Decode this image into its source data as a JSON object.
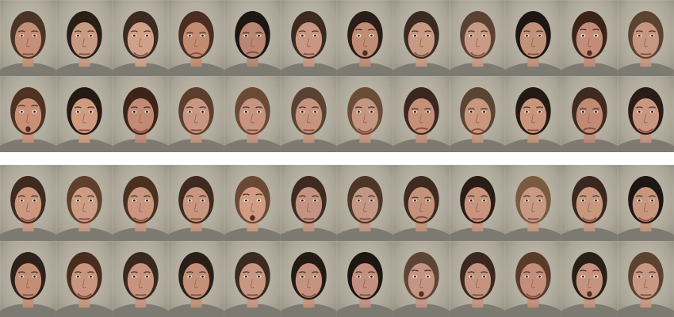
{
  "panels": [
    {
      "rows": [
        [
          {
            "hair": "#4a3426",
            "skin": "#c48f76",
            "expr": "neutral"
          },
          {
            "hair": "#2a1e18",
            "skin": "#c99a82",
            "expr": "neutral"
          },
          {
            "hair": "#3a2a20",
            "skin": "#d2a088",
            "expr": "smile"
          },
          {
            "hair": "#4a2e22",
            "skin": "#c38c72",
            "expr": "anger"
          },
          {
            "hair": "#1e1612",
            "skin": "#b88672",
            "expr": "disgust"
          },
          {
            "hair": "#3c2a20",
            "skin": "#c99682",
            "expr": "neutral"
          },
          {
            "hair": "#2a1c16",
            "skin": "#c08c74",
            "expr": "surprise"
          },
          {
            "hair": "#3a2a22",
            "skin": "#c89a82",
            "expr": "smile"
          },
          {
            "hair": "#5a4232",
            "skin": "#c99a86",
            "expr": "smile"
          },
          {
            "hair": "#1e1612",
            "skin": "#c29278",
            "expr": "neutral"
          },
          {
            "hair": "#3a2418",
            "skin": "#c48c78",
            "expr": "surprise"
          },
          {
            "hair": "#5c4230",
            "skin": "#c69680",
            "expr": "neutral"
          }
        ],
        [
          {
            "hair": "#4e3222",
            "skin": "#c99078",
            "expr": "surprise"
          },
          {
            "hair": "#241a14",
            "skin": "#d09c80",
            "expr": "neutral"
          },
          {
            "hair": "#3e2418",
            "skin": "#c08a74",
            "expr": "smile"
          },
          {
            "hair": "#5c3e2c",
            "skin": "#c89682",
            "expr": "neutral"
          },
          {
            "hair": "#6a4a34",
            "skin": "#c69480",
            "expr": "neutral"
          },
          {
            "hair": "#5a4232",
            "skin": "#c6947e",
            "expr": "neutral"
          },
          {
            "hair": "#6a4c38",
            "skin": "#c59682",
            "expr": "smile"
          },
          {
            "hair": "#3a2820",
            "skin": "#c49078",
            "expr": "disgust"
          },
          {
            "hair": "#5a4434",
            "skin": "#c8977e",
            "expr": "anger"
          },
          {
            "hair": "#241a14",
            "skin": "#c9967c",
            "expr": "neutral"
          },
          {
            "hair": "#3e2a20",
            "skin": "#c08a74",
            "expr": "disgust"
          },
          {
            "hair": "#2a1c16",
            "skin": "#c99680",
            "expr": "smile"
          }
        ]
      ]
    },
    {
      "rows": [
        [
          {
            "hair": "#3e2a1e",
            "skin": "#cb977e",
            "expr": "smile"
          },
          {
            "hair": "#5e402c",
            "skin": "#cc9c84",
            "expr": "neutral"
          },
          {
            "hair": "#4a3020",
            "skin": "#c99680",
            "expr": "smile"
          },
          {
            "hair": "#3e2a20",
            "skin": "#c8967e",
            "expr": "neutral"
          },
          {
            "hair": "#6a4a34",
            "skin": "#d09c82",
            "expr": "surprise"
          },
          {
            "hair": "#3e2a20",
            "skin": "#c49280",
            "expr": "neutral"
          },
          {
            "hair": "#4c3628",
            "skin": "#c49684",
            "expr": "neutral"
          },
          {
            "hair": "#3e2a1e",
            "skin": "#c4927a",
            "expr": "disgust"
          },
          {
            "hair": "#2a1c16",
            "skin": "#c8947e",
            "expr": "neutral"
          },
          {
            "hair": "#7a5a40",
            "skin": "#c89a84",
            "expr": "neutral"
          },
          {
            "hair": "#3a2820",
            "skin": "#c8987e",
            "expr": "smile"
          },
          {
            "hair": "#1e1612",
            "skin": "#c8967e",
            "expr": "smile"
          }
        ],
        [
          {
            "hair": "#2e201a",
            "skin": "#c48e76",
            "expr": "neutral"
          },
          {
            "hair": "#4a2c1e",
            "skin": "#c8967e",
            "expr": "smile"
          },
          {
            "hair": "#3a2820",
            "skin": "#c89480",
            "expr": "neutral"
          },
          {
            "hair": "#2a1e18",
            "skin": "#c4907a",
            "expr": "neutral"
          },
          {
            "hair": "#3a2a20",
            "skin": "#c99682",
            "expr": "neutral"
          },
          {
            "hair": "#241a14",
            "skin": "#c4927e",
            "expr": "smile"
          },
          {
            "hair": "#1e1612",
            "skin": "#c39080",
            "expr": "neutral"
          },
          {
            "hair": "#5e4434",
            "skin": "#c49484",
            "expr": "surprise"
          },
          {
            "hair": "#3a2820",
            "skin": "#c59480",
            "expr": "neutral"
          },
          {
            "hair": "#5a3a28",
            "skin": "#c48e7a",
            "expr": "smile"
          },
          {
            "hair": "#2a1e18",
            "skin": "#c4927e",
            "expr": "surprise"
          },
          {
            "hair": "#5c4230",
            "skin": "#c89882",
            "expr": "neutral"
          }
        ]
      ]
    }
  ]
}
